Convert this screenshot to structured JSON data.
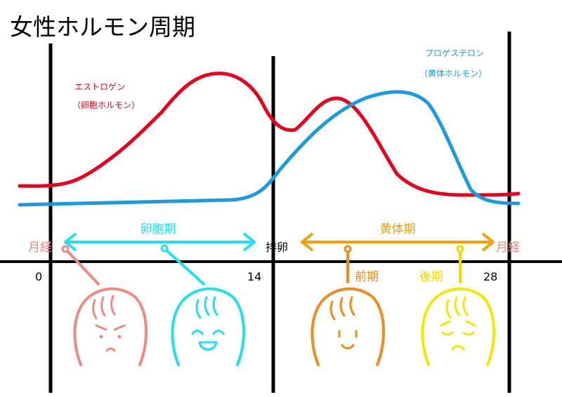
{
  "title": "女性ホルモン周期",
  "hormones": {
    "estrogen": {
      "name": "エストロゲン",
      "sub": "（卵胞ホルモン）",
      "color": "#e8001c"
    },
    "progesterone": {
      "name": "プロゲステロン",
      "sub": "（黄体ホルモン）",
      "color": "#1a9be0"
    }
  },
  "phases": {
    "follicular": {
      "label": "卵胞期",
      "color": "#22e0f0"
    },
    "ovulation": {
      "label": "排卵"
    },
    "luteal": {
      "label": "黄体期",
      "color": "#f5a000"
    },
    "menstruation_start": {
      "label": "月経",
      "color": "#f08a80"
    },
    "menstruation_end": {
      "label": "月経",
      "color": "#f08a80"
    },
    "early_luteal": {
      "label": "前期",
      "color": "#f58a1a"
    },
    "late_luteal": {
      "label": "後期",
      "color": "#f5d800"
    }
  },
  "day_labels": {
    "start": "0",
    "ovulation": "14",
    "end": "28"
  },
  "faces": [
    {
      "name": "menstruation-face",
      "mood": "gloomy",
      "color": "#f08a80"
    },
    {
      "name": "follicular-face",
      "mood": "happy",
      "color": "#22e0f0"
    },
    {
      "name": "early-luteal-face",
      "mood": "calm-smile",
      "color": "#f58a1a"
    },
    {
      "name": "late-luteal-face",
      "mood": "tired",
      "color": "#f5e800"
    }
  ]
}
